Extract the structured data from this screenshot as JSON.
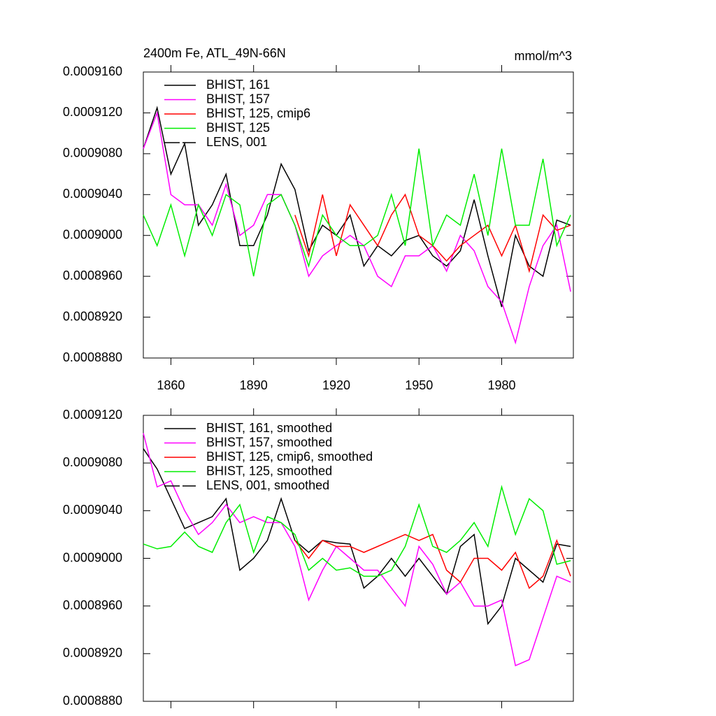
{
  "chart_data": [
    {
      "type": "line",
      "title": "2400m Fe, ATL_49N-66N",
      "units": "mmol/m^3",
      "x": [
        1850,
        1855,
        1860,
        1865,
        1870,
        1875,
        1880,
        1885,
        1890,
        1895,
        1900,
        1905,
        1910,
        1915,
        1920,
        1925,
        1930,
        1935,
        1940,
        1945,
        1950,
        1955,
        1960,
        1965,
        1970,
        1975,
        1980,
        1985,
        1990,
        1995,
        2000,
        2005
      ],
      "series": [
        {
          "name": "BHIST, 161",
          "color": "#000000",
          "values": [
            0.0009085,
            0.0009125,
            0.000906,
            0.000909,
            0.000901,
            0.000903,
            0.000906,
            0.000899,
            0.000899,
            0.000902,
            0.000907,
            0.0009045,
            0.0008985,
            0.000901,
            0.0009,
            0.000902,
            0.000897,
            0.000899,
            0.000898,
            0.0008995,
            0.0009,
            0.000898,
            0.000897,
            0.0008985,
            0.0009035,
            0.000898,
            0.000893,
            0.0009,
            0.000897,
            0.000896,
            0.0009015,
            0.000901
          ]
        },
        {
          "name": "BHIST, 157",
          "color": "#ff00ff",
          "values": [
            0.0009085,
            0.000912,
            0.000904,
            0.000903,
            0.000903,
            0.000901,
            0.000905,
            0.0009,
            0.000901,
            0.000904,
            0.000904,
            0.000901,
            0.000896,
            0.000898,
            0.000899,
            0.0009,
            0.000899,
            0.000896,
            0.000895,
            0.000898,
            0.000898,
            0.000899,
            0.0008965,
            0.0009,
            0.0008985,
            0.000895,
            0.0008935,
            0.0008895,
            0.000895,
            0.000899,
            0.000901,
            0.0008945
          ]
        },
        {
          "name": "BHIST, 125, cmip6",
          "color": "#ff0000",
          "values": [
            null,
            null,
            null,
            null,
            null,
            null,
            null,
            null,
            null,
            null,
            null,
            0.000902,
            0.000898,
            0.000904,
            0.000898,
            0.000903,
            0.000901,
            0.000899,
            0.000902,
            0.000904,
            0.0009,
            0.000899,
            0.0008975,
            0.000899,
            0.0009,
            0.000901,
            0.000898,
            0.000901,
            0.0008965,
            0.000902,
            0.0009005,
            0.000901
          ]
        },
        {
          "name": "BHIST, 125",
          "color": "#00ee00",
          "values": [
            0.000902,
            0.000899,
            0.000903,
            0.000898,
            0.000903,
            0.0009,
            0.000904,
            0.000903,
            0.000896,
            0.000903,
            0.000904,
            0.000901,
            0.000897,
            0.000902,
            0.0009,
            0.000899,
            0.000899,
            0.0009,
            0.000904,
            0.000899,
            0.0009085,
            0.000899,
            0.000902,
            0.000901,
            0.000906,
            0.0009,
            0.0009085,
            0.000901,
            0.000901,
            0.0009075,
            0.000899,
            0.000902
          ]
        },
        {
          "name": "LENS, 001",
          "color": "#000000",
          "dash": true,
          "values": [
            null,
            null,
            null,
            null,
            null,
            null,
            null,
            null,
            null,
            null,
            null,
            null,
            null,
            null,
            null,
            null,
            null,
            null,
            null,
            null,
            null,
            null,
            null,
            null,
            null,
            null,
            null,
            null,
            null,
            null,
            null,
            null
          ]
        }
      ],
      "xlim": [
        1850,
        2006
      ],
      "xticks": [
        1860,
        1890,
        1920,
        1950,
        1980
      ],
      "xtick_labels": true,
      "ylim": [
        0.000888,
        0.000916
      ],
      "yticks": [
        {
          "value": 0.000888,
          "label": "0.0008880"
        },
        {
          "value": 0.000892,
          "label": "0.0008920"
        },
        {
          "value": 0.000896,
          "label": "0.0008960"
        },
        {
          "value": 0.0009,
          "label": "0.0009000"
        },
        {
          "value": 0.000904,
          "label": "0.0009040"
        },
        {
          "value": 0.000908,
          "label": "0.0009080"
        },
        {
          "value": 0.000912,
          "label": "0.0009120"
        },
        {
          "value": 0.000916,
          "label": "0.0009160"
        }
      ],
      "legend": "upper left"
    },
    {
      "type": "line",
      "x": [
        1850,
        1855,
        1860,
        1865,
        1870,
        1875,
        1880,
        1885,
        1890,
        1895,
        1900,
        1905,
        1910,
        1915,
        1920,
        1925,
        1930,
        1935,
        1940,
        1945,
        1950,
        1955,
        1960,
        1965,
        1970,
        1975,
        1980,
        1985,
        1990,
        1995,
        2000,
        2005
      ],
      "series": [
        {
          "name": "BHIST, 161, smoothed",
          "color": "#000000",
          "values": [
            0.0009092,
            0.0009075,
            0.000905,
            0.0009025,
            0.000903,
            0.0009035,
            0.000905,
            0.000899,
            0.0009,
            0.0009015,
            0.000905,
            0.0009015,
            0.0009005,
            0.0009015,
            0.0009013,
            0.0009012,
            0.0008975,
            0.0008985,
            0.0009,
            0.0008985,
            0.0009,
            0.0008985,
            0.000897,
            0.000901,
            0.000902,
            0.0008945,
            0.000896,
            0.0009,
            0.000899,
            0.000898,
            0.0009012,
            0.000901
          ]
        },
        {
          "name": "BHIST, 157, smoothed",
          "color": "#ff00ff",
          "values": [
            0.0009105,
            0.000906,
            0.0009065,
            0.000904,
            0.000902,
            0.000903,
            0.0009045,
            0.000903,
            0.0009035,
            0.000903,
            0.000903,
            0.000901,
            0.0008965,
            0.000899,
            0.000901,
            0.0009,
            0.000899,
            0.000899,
            0.0008975,
            0.000896,
            0.000901,
            0.0008995,
            0.000897,
            0.000898,
            0.000896,
            0.000896,
            0.0008965,
            0.000891,
            0.0008915,
            0.000895,
            0.0008985,
            0.000898
          ]
        },
        {
          "name": "BHIST, 125, cmip6, smoothed",
          "color": "#ff0000",
          "values": [
            null,
            null,
            null,
            null,
            null,
            null,
            null,
            null,
            null,
            null,
            null,
            0.0009015,
            0.0009,
            0.0009015,
            0.000901,
            0.000901,
            0.0009005,
            0.000901,
            0.0009015,
            0.000902,
            0.0009015,
            0.000902,
            0.000899,
            0.000898,
            0.0009,
            0.0009,
            0.000899,
            0.0009005,
            0.0008975,
            0.0008985,
            0.0009015,
            0.0008985
          ]
        },
        {
          "name": "BHIST, 125, smoothed",
          "color": "#00ee00",
          "values": [
            0.0009012,
            0.0009008,
            0.000901,
            0.0009022,
            0.000901,
            0.0009005,
            0.000903,
            0.0009045,
            0.0009005,
            0.0009035,
            0.000903,
            0.000902,
            0.000899,
            0.0009,
            0.000899,
            0.0008992,
            0.0008985,
            0.0008985,
            0.000899,
            0.000901,
            0.0009045,
            0.000901,
            0.0009005,
            0.0009015,
            0.000903,
            0.000901,
            0.000906,
            0.000902,
            0.000905,
            0.000904,
            0.0008995,
            0.0008998
          ]
        },
        {
          "name": "LENS, 001, smoothed",
          "color": "#000000",
          "dash": true,
          "values": [
            null,
            null,
            null,
            null,
            null,
            null,
            null,
            null,
            null,
            null,
            null,
            null,
            null,
            null,
            null,
            null,
            null,
            null,
            null,
            null,
            null,
            null,
            null,
            null,
            null,
            null,
            null,
            null,
            null,
            null,
            null,
            null
          ]
        }
      ],
      "xlim": [
        1850,
        2006
      ],
      "xticks": [
        1860,
        1890,
        1920,
        1950,
        1980
      ],
      "xtick_labels": false,
      "ylim": [
        0.000888,
        0.000912
      ],
      "yticks": [
        {
          "value": 0.000888,
          "label": "0.0008880"
        },
        {
          "value": 0.000892,
          "label": "0.0008920"
        },
        {
          "value": 0.000896,
          "label": "0.0008960"
        },
        {
          "value": 0.0009,
          "label": "0.0009000"
        },
        {
          "value": 0.000904,
          "label": "0.0009040"
        },
        {
          "value": 0.000908,
          "label": "0.0009080"
        },
        {
          "value": 0.000912,
          "label": "0.0009120"
        }
      ],
      "legend": "upper left"
    }
  ]
}
